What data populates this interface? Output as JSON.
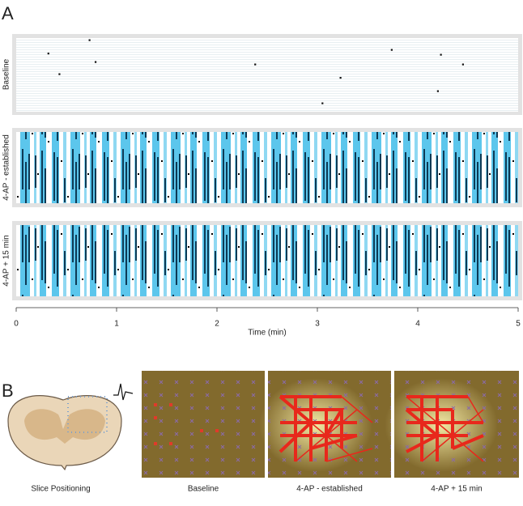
{
  "panel_labels": [
    "A",
    "B"
  ],
  "chart_data": {
    "type": "scatter",
    "panels": [
      "Baseline",
      "4-AP - established",
      "4-AP + 15 min"
    ],
    "xlabel": "Time (min)",
    "xlim": [
      0,
      5
    ],
    "xticks": [
      0,
      1,
      2,
      3,
      4,
      5
    ],
    "ylim": [
      0,
      60
    ],
    "color": "#111111",
    "x": [
      0.32,
      0.43,
      0.73,
      0.79,
      2.38,
      3.05,
      3.23,
      3.74,
      4.23,
      4.2,
      4.45
    ],
    "values": [
      12,
      29,
      1,
      19,
      21,
      53,
      32,
      9,
      13,
      43,
      21
    ]
  },
  "panel_b": {
    "captions": [
      "Slice Positioning",
      "Baseline",
      "4-AP - established",
      "4-AP + 15 min"
    ]
  }
}
